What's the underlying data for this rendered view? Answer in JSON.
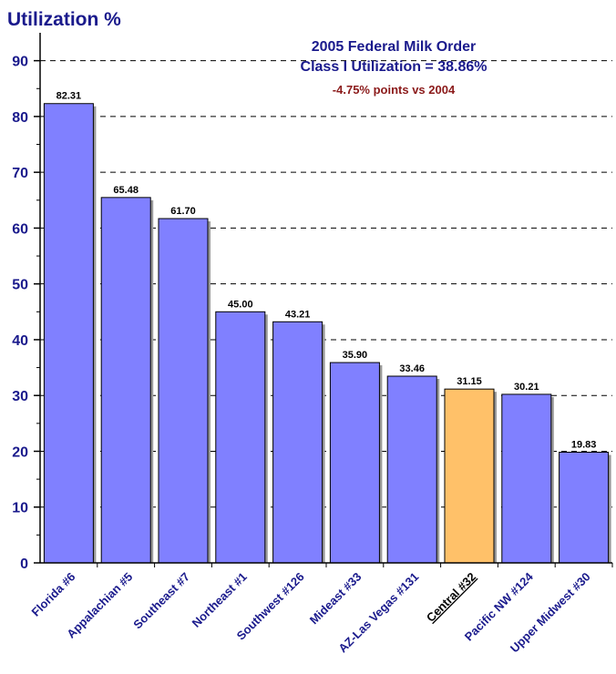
{
  "chart_data": {
    "type": "bar",
    "title": "2005 Federal Milk Order",
    "subtitle": "Class I Utilization = 38.86%",
    "annotation": "-4.75% points vs 2004",
    "ylabel": "Utilization %",
    "xlabel": "",
    "ylim": [
      0,
      95
    ],
    "yticks": [
      0,
      10,
      20,
      30,
      40,
      50,
      60,
      70,
      80,
      90
    ],
    "grid": true,
    "categories": [
      "Florida #6",
      "Appalachian #5",
      "Southeast #7",
      "Northeast #1",
      "Southwest #126",
      "Mideast #33",
      "AZ-Las Vegas #131",
      "Central #32",
      "Pacific NW #124",
      "Upper Midwest #30"
    ],
    "values": [
      82.31,
      65.48,
      61.7,
      45.0,
      43.21,
      35.9,
      33.46,
      31.15,
      30.21,
      19.83
    ],
    "value_labels": [
      "82.31",
      "65.48",
      "61.70",
      "45.00",
      "43.21",
      "35.90",
      "33.46",
      "31.15",
      "30.21",
      "19.83"
    ],
    "highlight_category": "Central #32",
    "colors": {
      "bar": "#8080ff",
      "highlight": "#ffc169",
      "axis_text": "#1a1a8c",
      "annotation": "#8b1a1a"
    }
  }
}
